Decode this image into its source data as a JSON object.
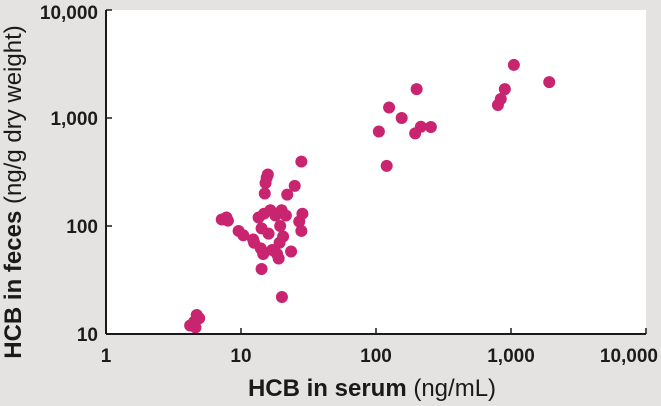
{
  "chart_data": {
    "type": "scatter",
    "xscale": "log",
    "yscale": "log",
    "xlim": [
      1,
      10000
    ],
    "ylim": [
      10,
      10000
    ],
    "xticks": [
      {
        "value": 1,
        "label": "1"
      },
      {
        "value": 10,
        "label": "10"
      },
      {
        "value": 100,
        "label": "100"
      },
      {
        "value": 1000,
        "label": "1,000"
      },
      {
        "value": 10000,
        "label": "10,000"
      }
    ],
    "yticks": [
      {
        "value": 10,
        "label": "10"
      },
      {
        "value": 100,
        "label": "100"
      },
      {
        "value": 1000,
        "label": "1,000"
      },
      {
        "value": 10000,
        "label": "10,000"
      }
    ],
    "xlabel": {
      "bold": "HCB in serum",
      "unit": " (ng/mL)"
    },
    "ylabel": {
      "bold": "HCB in feces",
      "unit": " (ng/g dry weight)"
    },
    "grid": false,
    "colors": {
      "point": "#c8246f",
      "plot_bg": "#ffffff",
      "axis": "#1a1a1a"
    },
    "points": [
      [
        4.2,
        12
      ],
      [
        4.5,
        13
      ],
      [
        4.7,
        15
      ],
      [
        4.9,
        14
      ],
      [
        4.6,
        11.5
      ],
      [
        7.2,
        115
      ],
      [
        7.8,
        120
      ],
      [
        8,
        112
      ],
      [
        9.6,
        90
      ],
      [
        10.4,
        82
      ],
      [
        12.3,
        75
      ],
      [
        12.5,
        70
      ],
      [
        13.5,
        120
      ],
      [
        14.2,
        95
      ],
      [
        15,
        200
      ],
      [
        15.2,
        250
      ],
      [
        15.8,
        300
      ],
      [
        15.5,
        280
      ],
      [
        14.8,
        130
      ],
      [
        14,
        62
      ],
      [
        14.6,
        55
      ],
      [
        14.2,
        40
      ],
      [
        16,
        85
      ],
      [
        16.5,
        140
      ],
      [
        17,
        60
      ],
      [
        18,
        125
      ],
      [
        18.5,
        55
      ],
      [
        19,
        50
      ],
      [
        19.5,
        100
      ],
      [
        19.3,
        70
      ],
      [
        20,
        140
      ],
      [
        20.5,
        80
      ],
      [
        20.1,
        22
      ],
      [
        21.5,
        125
      ],
      [
        22,
        195
      ],
      [
        23.5,
        58
      ],
      [
        25,
        235
      ],
      [
        27,
        110
      ],
      [
        28,
        395
      ],
      [
        28.5,
        130
      ],
      [
        28,
        90
      ],
      [
        105,
        750
      ],
      [
        120,
        360
      ],
      [
        125,
        1250
      ],
      [
        155,
        1000
      ],
      [
        200,
        1850
      ],
      [
        195,
        720
      ],
      [
        215,
        830
      ],
      [
        255,
        825
      ],
      [
        800,
        1320
      ],
      [
        840,
        1500
      ],
      [
        900,
        1850
      ],
      [
        1050,
        3100
      ],
      [
        1920,
        2150
      ]
    ]
  }
}
